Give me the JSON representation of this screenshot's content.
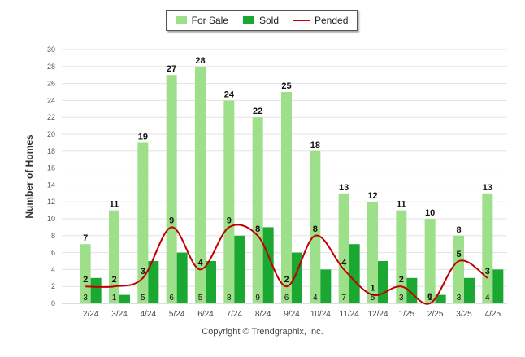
{
  "legend": {
    "for_sale": "For Sale",
    "sold": "Sold",
    "pended": "Pended"
  },
  "colors": {
    "for_sale": "#9ee08a",
    "sold": "#1aa832",
    "pended": "#c00000",
    "grid": "#e3e3e3"
  },
  "footer": "Copyright © Trendgraphix, Inc.",
  "chart_data": {
    "type": "bar",
    "ylabel": "Number of Homes",
    "xlabel": "",
    "ylim": [
      0,
      30
    ],
    "yticks": [
      0,
      2,
      4,
      6,
      8,
      10,
      12,
      14,
      16,
      18,
      20,
      22,
      24,
      26,
      28,
      30
    ],
    "grid": true,
    "legend_position": "top-center",
    "categories": [
      "2/24",
      "3/24",
      "4/24",
      "5/24",
      "6/24",
      "7/24",
      "8/24",
      "9/24",
      "10/24",
      "11/24",
      "12/24",
      "1/25",
      "2/25",
      "3/25",
      "4/25"
    ],
    "series": [
      {
        "name": "For Sale",
        "kind": "bar",
        "values": [
          7,
          11,
          19,
          27,
          28,
          24,
          22,
          25,
          18,
          13,
          12,
          11,
          10,
          8,
          13
        ]
      },
      {
        "name": "Sold",
        "kind": "bar",
        "values": [
          3,
          1,
          5,
          6,
          5,
          8,
          9,
          6,
          4,
          7,
          5,
          3,
          1,
          3,
          4
        ]
      },
      {
        "name": "Pended",
        "kind": "line",
        "values": [
          2,
          2,
          3,
          9,
          4,
          9,
          8,
          2,
          8,
          4,
          1,
          2,
          0,
          5,
          3
        ]
      }
    ]
  }
}
